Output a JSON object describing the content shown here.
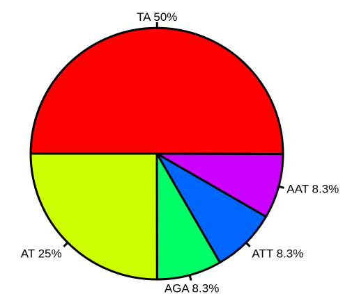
{
  "chart_data": {
    "type": "pie",
    "slices": [
      {
        "name": "TA",
        "label": "TA 50%",
        "value": 50.0,
        "color": "#ff0000"
      },
      {
        "name": "AAT",
        "label": "AAT 8.3%",
        "value": 8.3,
        "color": "#cc00ff"
      },
      {
        "name": "ATT",
        "label": "ATT 8.3%",
        "value": 8.3,
        "color": "#0066ff"
      },
      {
        "name": "AGA",
        "label": "AGA 8.3%",
        "value": 8.3,
        "color": "#00ff66"
      },
      {
        "name": "AT",
        "label": "AT 25%",
        "value": 25.0,
        "color": "#ccff00"
      }
    ],
    "start_angle": "180 degrees (left), clockwise"
  }
}
